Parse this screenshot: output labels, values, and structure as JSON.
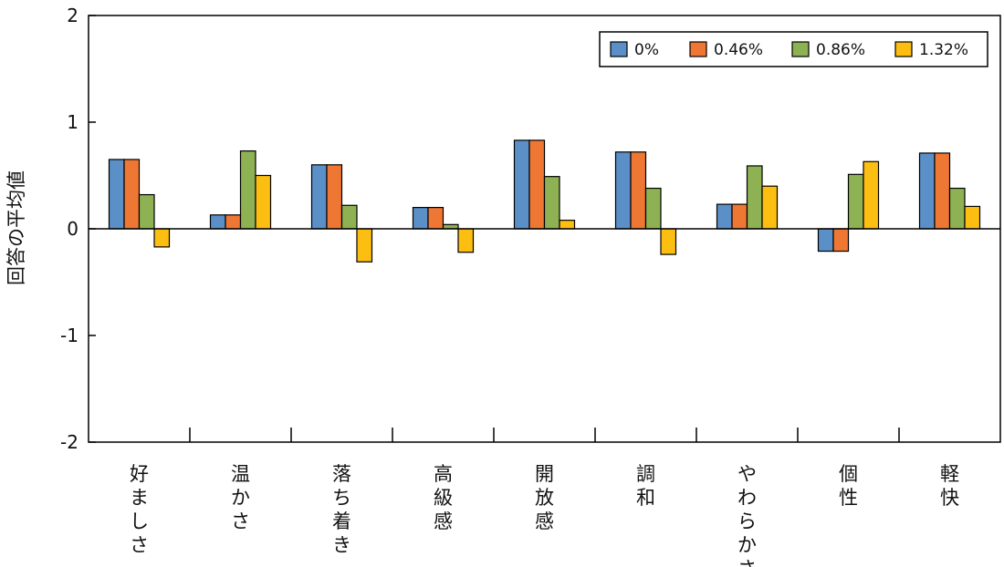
{
  "chart_data": {
    "type": "bar",
    "title": "",
    "xlabel": "",
    "ylabel": "回答の平均値",
    "ylim": [
      -2,
      2
    ],
    "yticks": [
      2,
      1,
      0,
      -1,
      -2
    ],
    "ytick_labels": [
      "2",
      "1",
      "0",
      "-1",
      "-2"
    ],
    "categories": [
      "好ましさ",
      "温かさ",
      "落ち着き",
      "高級感",
      "開放感",
      "調和",
      "やわらかさ",
      "個性",
      "軽快"
    ],
    "series": [
      {
        "name": "0%",
        "color": "#5B8FC7",
        "values": [
          0.65,
          0.13,
          0.6,
          0.2,
          0.83,
          0.72,
          0.23,
          -0.21,
          0.71
        ]
      },
      {
        "name": "0.46%",
        "color": "#EE7733",
        "values": [
          0.65,
          0.13,
          0.6,
          0.2,
          0.83,
          0.72,
          0.23,
          -0.21,
          0.71
        ]
      },
      {
        "name": "0.86%",
        "color": "#8DB153",
        "values": [
          0.32,
          0.73,
          0.22,
          0.04,
          0.49,
          0.38,
          0.59,
          0.51,
          0.38
        ]
      },
      {
        "name": "1.32%",
        "color": "#FDBE12",
        "values": [
          -0.17,
          0.5,
          -0.31,
          -0.22,
          0.08,
          -0.24,
          0.4,
          0.63,
          0.21
        ]
      }
    ],
    "legend": {
      "placement": "top-right",
      "labels": [
        "0%",
        "0.46%",
        "0.86%",
        "1.32%"
      ]
    },
    "grid": false
  }
}
